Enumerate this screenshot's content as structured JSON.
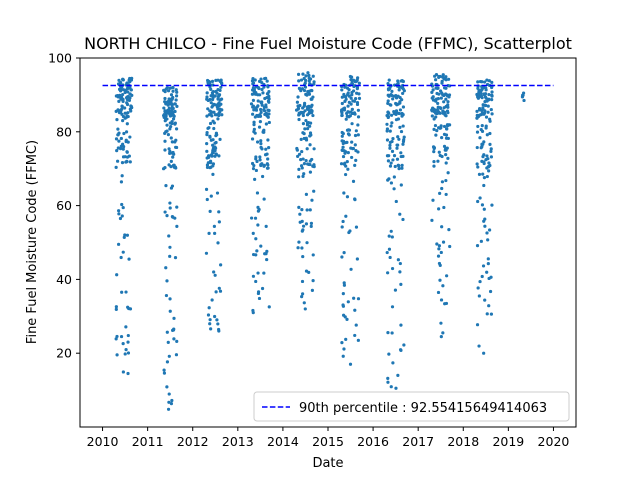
{
  "chart_data": {
    "type": "scatter",
    "title": "NORTH CHILCO - Fine Fuel Moisture Code (FFMC), Scatterplot",
    "xlabel": "Date",
    "ylabel": "Fine Fuel Moisture Code (FFMC)",
    "xlim": [
      2009.5,
      2020.5
    ],
    "ylim": [
      0,
      100
    ],
    "xticks": [
      "2010",
      "2011",
      "2012",
      "2013",
      "2014",
      "2015",
      "2016",
      "2017",
      "2018",
      "2019",
      "2020"
    ],
    "yticks": [
      "20",
      "40",
      "60",
      "80",
      "100"
    ],
    "grid": false,
    "legend_position": "lower-right",
    "point_color": "#1f77b4",
    "reference_line": {
      "label": "90th percentile : 92.55415649414063",
      "value": 92.55415649414063,
      "color": "#0000ff",
      "style": "dashed",
      "x_range": [
        2010.0,
        2020.0
      ]
    },
    "seasons": [
      {
        "year": 2010,
        "start": 2010.3,
        "end": 2010.65,
        "min": 14.5,
        "max": 94.5
      },
      {
        "year": 2011,
        "start": 2011.35,
        "end": 2011.65,
        "min": 4.8,
        "max": 92.0
      },
      {
        "year": 2012,
        "start": 2012.3,
        "end": 2012.65,
        "min": 26.0,
        "max": 94.0
      },
      {
        "year": 2013,
        "start": 2013.3,
        "end": 2013.7,
        "min": 31.0,
        "max": 94.5
      },
      {
        "year": 2014,
        "start": 2014.3,
        "end": 2014.7,
        "min": 32.0,
        "max": 96.0
      },
      {
        "year": 2015,
        "start": 2015.3,
        "end": 2015.7,
        "min": 17.0,
        "max": 95.0
      },
      {
        "year": 2016,
        "start": 2016.3,
        "end": 2016.7,
        "min": 10.5,
        "max": 94.0
      },
      {
        "year": 2017,
        "start": 2017.3,
        "end": 2017.7,
        "min": 24.5,
        "max": 95.5
      },
      {
        "year": 2018,
        "start": 2018.3,
        "end": 2018.65,
        "min": 20.0,
        "max": 94.0
      },
      {
        "year": 2019,
        "start": 2019.3,
        "end": 2019.36,
        "min": 88.5,
        "max": 90.5
      }
    ]
  }
}
